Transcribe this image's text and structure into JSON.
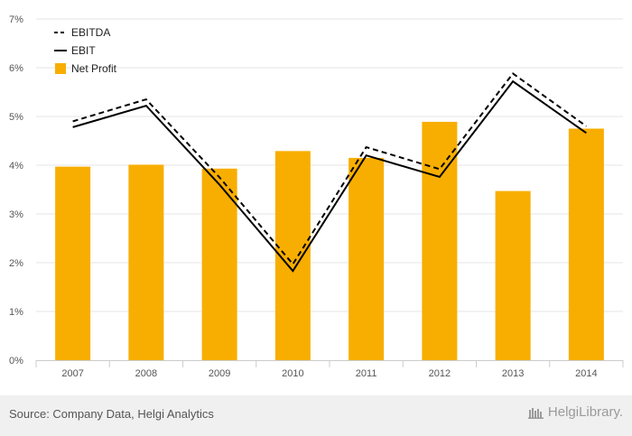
{
  "chart_data": {
    "type": "bar",
    "categories": [
      "2007",
      "2008",
      "2009",
      "2010",
      "2011",
      "2012",
      "2013",
      "2014"
    ],
    "series": [
      {
        "name": "Net Profit",
        "type": "bar",
        "color": "#f8ae00",
        "values": [
          3.97,
          4.01,
          3.93,
          4.29,
          4.15,
          4.89,
          3.47,
          4.75
        ]
      },
      {
        "name": "EBITDA",
        "type": "line",
        "style": "dashed",
        "color": "#000000",
        "values": [
          4.9,
          5.35,
          3.75,
          1.97,
          4.37,
          3.92,
          5.88,
          4.8
        ]
      },
      {
        "name": "EBIT",
        "type": "line",
        "style": "solid",
        "color": "#000000",
        "values": [
          4.78,
          5.22,
          3.6,
          1.83,
          4.2,
          3.76,
          5.72,
          4.66
        ]
      }
    ],
    "yticks": [
      "0%",
      "1%",
      "2%",
      "3%",
      "4%",
      "5%",
      "6%",
      "7%"
    ],
    "ylim": [
      0,
      7
    ],
    "grid": true,
    "legend_position": "top-left"
  },
  "footer": {
    "source": "Source: Company Data, Helgi Analytics",
    "brand": "HelgiLibrary."
  }
}
